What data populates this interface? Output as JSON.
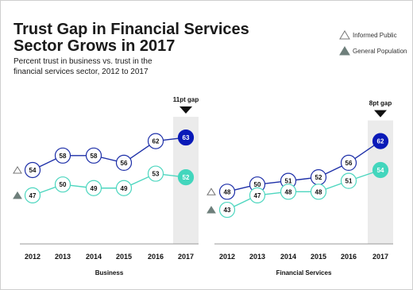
{
  "title_line1": "Trust Gap in Financial Services",
  "title_line2": "Sector Grows in 2017",
  "subtitle_line1": "Percent trust in business vs. trust in the",
  "subtitle_line2": "financial services sector, 2012 to 2017",
  "legend": {
    "informed": "Informed Public",
    "general": "General Population"
  },
  "colors": {
    "informed_line": "#1d2fa8",
    "informed_highlight": "#0a1ab8",
    "general_line": "#4dd6bf",
    "general_highlight": "#43d6bd",
    "highlight_band": "#ebebeb"
  },
  "chart_data": [
    {
      "type": "line",
      "categories": [
        "2012",
        "2013",
        "2014",
        "2015",
        "2016",
        "2017"
      ],
      "xlabel": "Business",
      "series": [
        {
          "name": "Informed Public",
          "values": [
            54,
            58,
            58,
            56,
            62,
            63
          ]
        },
        {
          "name": "General Population",
          "values": [
            47,
            50,
            49,
            49,
            53,
            52
          ]
        }
      ],
      "annotation": "11pt gap",
      "highlight_category": "2017"
    },
    {
      "type": "line",
      "categories": [
        "2012",
        "2013",
        "2014",
        "2015",
        "2016",
        "2017"
      ],
      "xlabel": "Financial Services",
      "series": [
        {
          "name": "Informed Public",
          "values": [
            48,
            50,
            51,
            52,
            56,
            62
          ]
        },
        {
          "name": "General Population",
          "values": [
            43,
            47,
            48,
            48,
            51,
            54
          ]
        }
      ],
      "annotation": "8pt gap",
      "highlight_category": "2017"
    }
  ]
}
